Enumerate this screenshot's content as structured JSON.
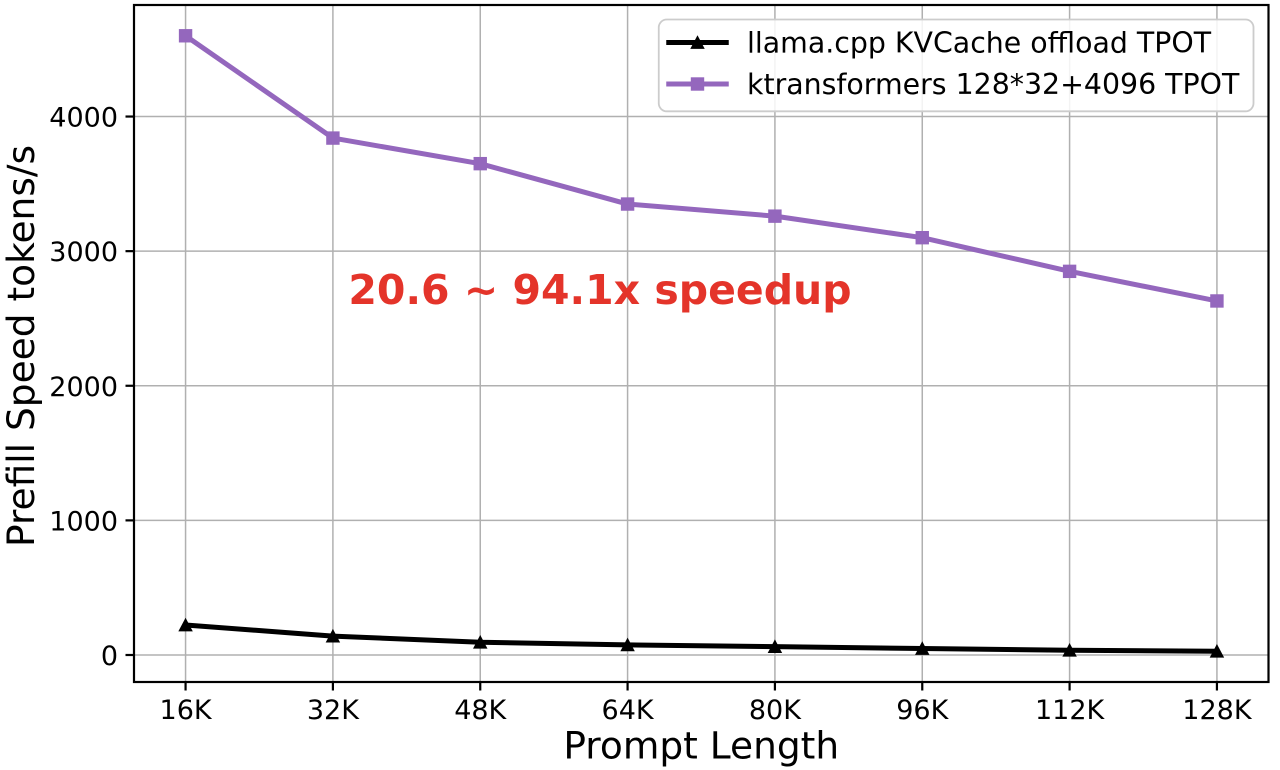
{
  "figure": {
    "background": "#ffffff"
  },
  "chart_data": {
    "type": "line",
    "title": "",
    "xlabel": "Prompt Length",
    "ylabel": "Prefill Speed tokens/s",
    "categories": [
      "16K",
      "32K",
      "48K",
      "64K",
      "80K",
      "96K",
      "112K",
      "128K"
    ],
    "series": [
      {
        "name": "llama.cpp KVCache offload TPOT",
        "color": "#000000",
        "marker": "triangle-up",
        "values": [
          223,
          140,
          95,
          75,
          62,
          48,
          35,
          28
        ]
      },
      {
        "name": "ktransformers 128*32+4096 TPOT",
        "color": "#9467bd",
        "marker": "square",
        "values": [
          4600,
          3840,
          3650,
          3350,
          3260,
          3100,
          2850,
          2630
        ]
      }
    ],
    "yticks": [
      0,
      1000,
      2000,
      3000,
      4000
    ],
    "ylim": [
      -200.6,
      4828.6
    ],
    "x_margin": 0.05,
    "grid": true,
    "grid_color": "#b0b0b0",
    "spine_color": "#000000",
    "legend": {
      "position": "upper right",
      "border_color": "#cccccc",
      "background": "#ffffff",
      "text_color": "#000000"
    },
    "annotation": {
      "text": "20.6 ~ 94.1x speedup",
      "color": "#e4342a",
      "fontweight": "bold"
    }
  }
}
